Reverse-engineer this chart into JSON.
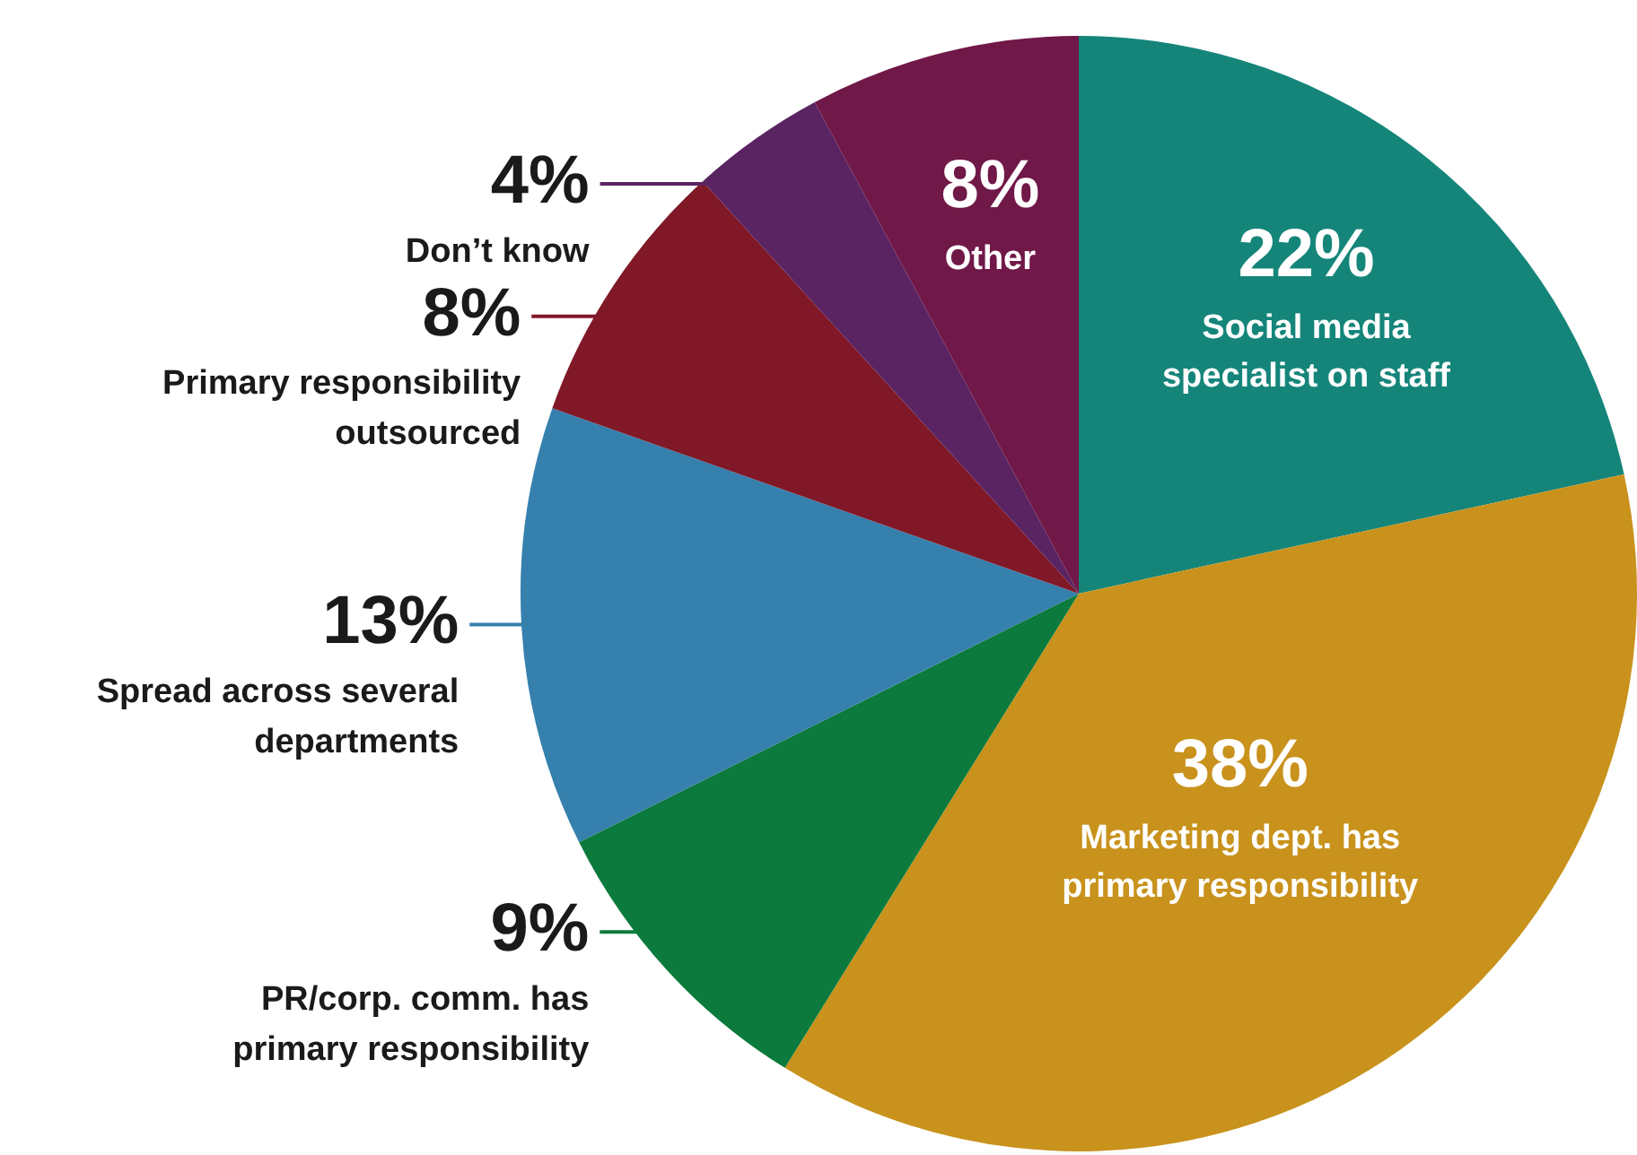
{
  "chart_data": {
    "type": "pie",
    "categories": [
      "Social media specialist on staff",
      "Marketing dept. has primary responsibility",
      "PR/corp. comm. has primary responsibility",
      "Spread across several departments",
      "Primary responsibility outsourced",
      "Don’t know",
      "Other"
    ],
    "values": [
      22,
      38,
      9,
      13,
      8,
      4,
      8
    ],
    "colors": [
      "#15857a",
      "#c8921c",
      "#0b7a3c",
      "#3580ad",
      "#801828",
      "#5a2462",
      "#701848"
    ],
    "value_labels": [
      "22%",
      "38%",
      "9%",
      "13%",
      "8%",
      "4%",
      "8%"
    ],
    "legend": false
  }
}
